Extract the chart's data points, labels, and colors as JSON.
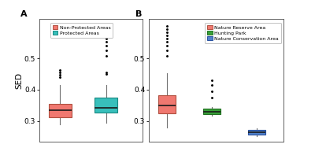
{
  "panel_A": {
    "label": "A",
    "boxes": [
      {
        "name": "Non-Protected Areas",
        "color": "#F07870",
        "edge_color": "#B05040",
        "q1": 0.312,
        "median": 0.335,
        "q3": 0.355,
        "whisker_low": 0.29,
        "whisker_high": 0.415,
        "outliers_low": [],
        "outliers_high": [
          0.44,
          0.448,
          0.455,
          0.462
        ]
      },
      {
        "name": "Protected Areas",
        "color": "#38BFBB",
        "edge_color": "#1A8880",
        "q1": 0.328,
        "median": 0.342,
        "q3": 0.375,
        "whisker_low": 0.295,
        "whisker_high": 0.415,
        "outliers_low": [],
        "outliers_high": [
          0.45,
          0.455,
          0.508,
          0.525,
          0.54,
          0.552,
          0.562,
          0.572,
          0.582,
          0.592,
          0.602
        ]
      }
    ]
  },
  "panel_B": {
    "label": "B",
    "boxes": [
      {
        "name": "Nature Reserve Area",
        "color": "#F07870",
        "edge_color": "#B05040",
        "q1": 0.325,
        "median": 0.35,
        "q3": 0.382,
        "whisker_low": 0.28,
        "whisker_high": 0.452,
        "outliers_low": [],
        "outliers_high": [
          0.508,
          0.525,
          0.54,
          0.552,
          0.562,
          0.572,
          0.582,
          0.592,
          0.602
        ]
      },
      {
        "name": "Hunting Park",
        "color": "#38A038",
        "edge_color": "#207020",
        "q1": 0.322,
        "median": 0.33,
        "q3": 0.34,
        "whisker_low": 0.316,
        "whisker_high": 0.346,
        "outliers_low": [],
        "outliers_high": [
          0.375,
          0.395,
          0.415,
          0.43
        ]
      },
      {
        "name": "Nature Conservation Area",
        "color": "#5080C8",
        "edge_color": "#2850A0",
        "q1": 0.258,
        "median": 0.265,
        "q3": 0.272,
        "whisker_low": 0.253,
        "whisker_high": 0.278,
        "outliers_low": [],
        "outliers_high": []
      }
    ]
  },
  "ylabel": "SED",
  "ylim": [
    0.235,
    0.625
  ],
  "yticks": [
    0.3,
    0.4,
    0.5
  ],
  "background_color": "#FFFFFF",
  "box_width": 0.5,
  "linewidth": 0.8
}
